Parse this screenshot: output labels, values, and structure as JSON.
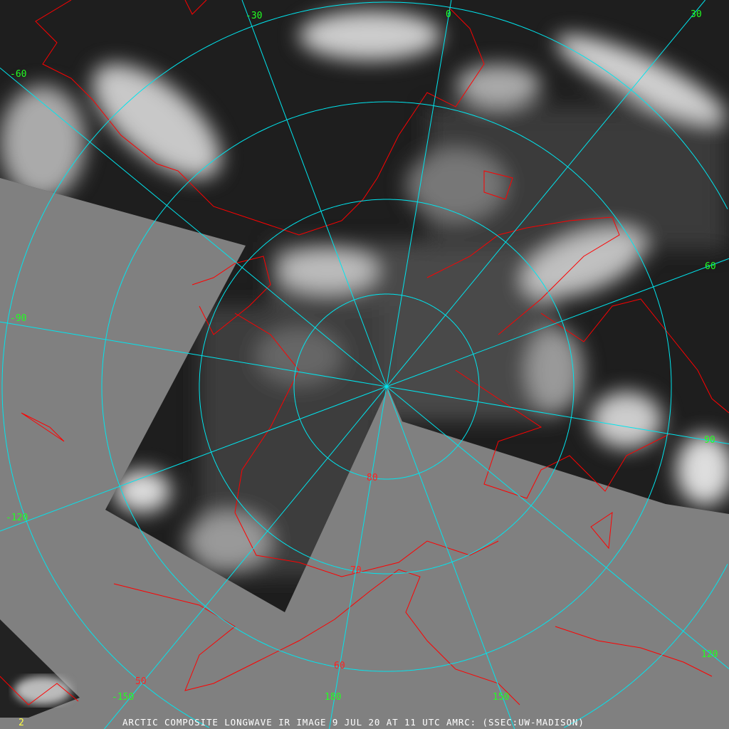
{
  "caption": "ARCTIC COMPOSITE LONGWAVE IR IMAGE 9 JUL 20 AT 11 UTC AMRC: (SSEC:UW-MADISON)",
  "frame_number": "2",
  "colors": {
    "no_data": "#808080",
    "graticule": "#00e5ee",
    "coastline": "#ff0000",
    "longitude_labels": "#22ff22",
    "latitude_labels": "#ff2020",
    "caption": "#ffffff",
    "frame_number": "#ffff40"
  },
  "projection": "polar stereographic, north pole centered",
  "longitude_labels": [
    "-30",
    "0",
    "30",
    "-60",
    "60",
    "-90",
    "90",
    "-120",
    "120",
    "-150",
    "180",
    "150"
  ],
  "latitude_labels": [
    "80",
    "70",
    "60",
    "50"
  ],
  "meridian_step_degrees": 30
}
